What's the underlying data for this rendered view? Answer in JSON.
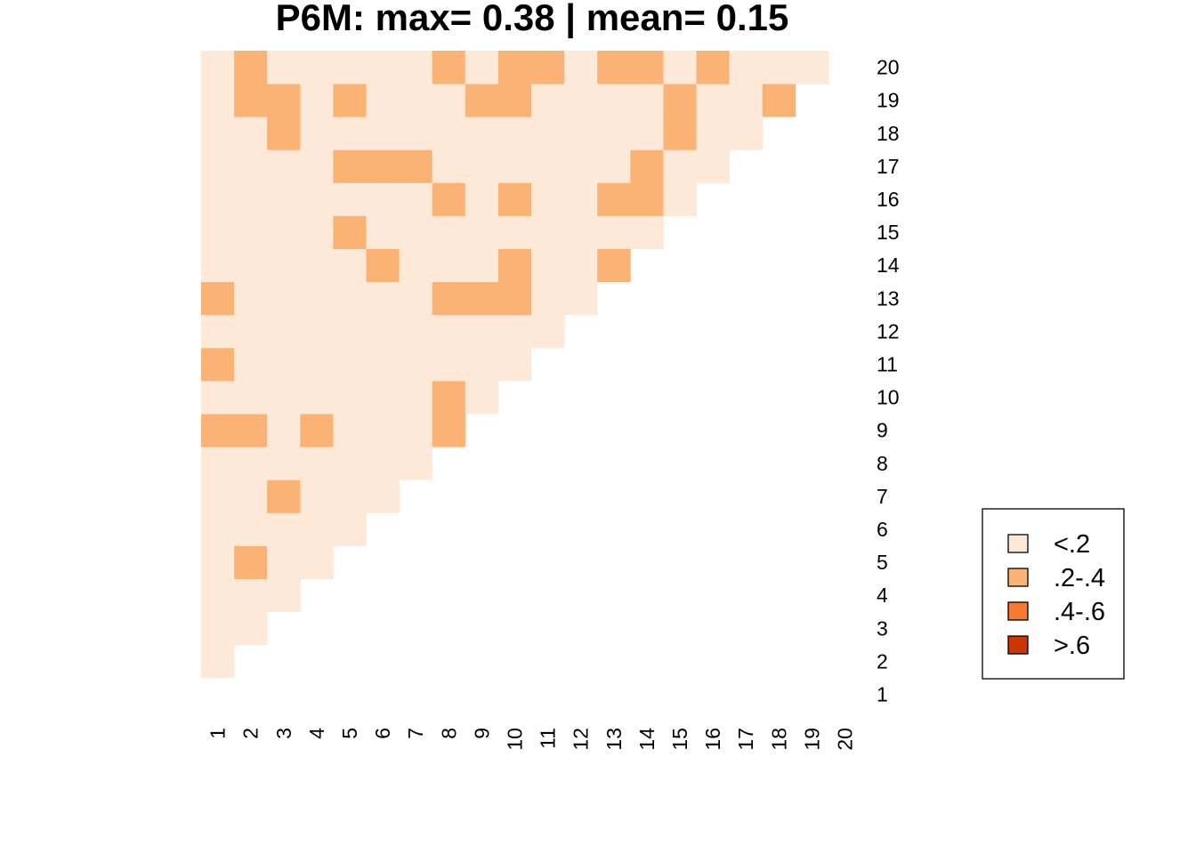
{
  "chart_data": {
    "type": "heatmap",
    "title": "P6M: max= 0.38 | mean= 0.15",
    "x_ticks": [
      "1",
      "2",
      "3",
      "4",
      "5",
      "6",
      "7",
      "8",
      "9",
      "10",
      "11",
      "12",
      "13",
      "14",
      "15",
      "16",
      "17",
      "18",
      "19",
      "20"
    ],
    "y_ticks": [
      "1",
      "2",
      "3",
      "4",
      "5",
      "6",
      "7",
      "8",
      "9",
      "10",
      "11",
      "12",
      "13",
      "14",
      "15",
      "16",
      "17",
      "18",
      "19",
      "20"
    ],
    "layout": "lower-triangle",
    "bins": [
      {
        "label": "<.2",
        "color": "#FEE8D8"
      },
      {
        "label": ".2-.4",
        "color": "#FBB275"
      },
      {
        "label": ".4-.6",
        "color": "#F8782F"
      },
      {
        "label": ">.6",
        "color": "#CC3700"
      }
    ],
    "bin_grid_note": "rows listed from y=2 to y=20; each row lists bin index for x=1..(y-1)",
    "bin_grid": [
      [
        0
      ],
      [
        0,
        0
      ],
      [
        0,
        0,
        0
      ],
      [
        0,
        1,
        0,
        0
      ],
      [
        0,
        0,
        0,
        0,
        0
      ],
      [
        0,
        0,
        1,
        0,
        0,
        0
      ],
      [
        0,
        0,
        0,
        0,
        0,
        0,
        0
      ],
      [
        1,
        1,
        0,
        1,
        0,
        0,
        0,
        1
      ],
      [
        0,
        0,
        0,
        0,
        0,
        0,
        0,
        1,
        0
      ],
      [
        1,
        0,
        0,
        0,
        0,
        0,
        0,
        0,
        0,
        0
      ],
      [
        0,
        0,
        0,
        0,
        0,
        0,
        0,
        0,
        0,
        0,
        0
      ],
      [
        1,
        0,
        0,
        0,
        0,
        0,
        0,
        1,
        1,
        1,
        0,
        0
      ],
      [
        0,
        0,
        0,
        0,
        0,
        1,
        0,
        0,
        0,
        1,
        0,
        0,
        1
      ],
      [
        0,
        0,
        0,
        0,
        1,
        0,
        0,
        0,
        0,
        0,
        0,
        0,
        0,
        0
      ],
      [
        0,
        0,
        0,
        0,
        0,
        0,
        0,
        1,
        0,
        1,
        0,
        0,
        1,
        1,
        0
      ],
      [
        0,
        0,
        0,
        0,
        1,
        1,
        1,
        0,
        0,
        0,
        0,
        0,
        0,
        1,
        0,
        0
      ],
      [
        0,
        0,
        1,
        0,
        0,
        0,
        0,
        0,
        0,
        0,
        0,
        0,
        0,
        0,
        1,
        0,
        0
      ],
      [
        0,
        1,
        1,
        0,
        1,
        0,
        0,
        0,
        1,
        1,
        0,
        0,
        0,
        0,
        1,
        0,
        0,
        1
      ],
      [
        0,
        1,
        0,
        0,
        0,
        0,
        0,
        1,
        0,
        1,
        1,
        0,
        1,
        1,
        0,
        1,
        0,
        0,
        0
      ]
    ]
  }
}
